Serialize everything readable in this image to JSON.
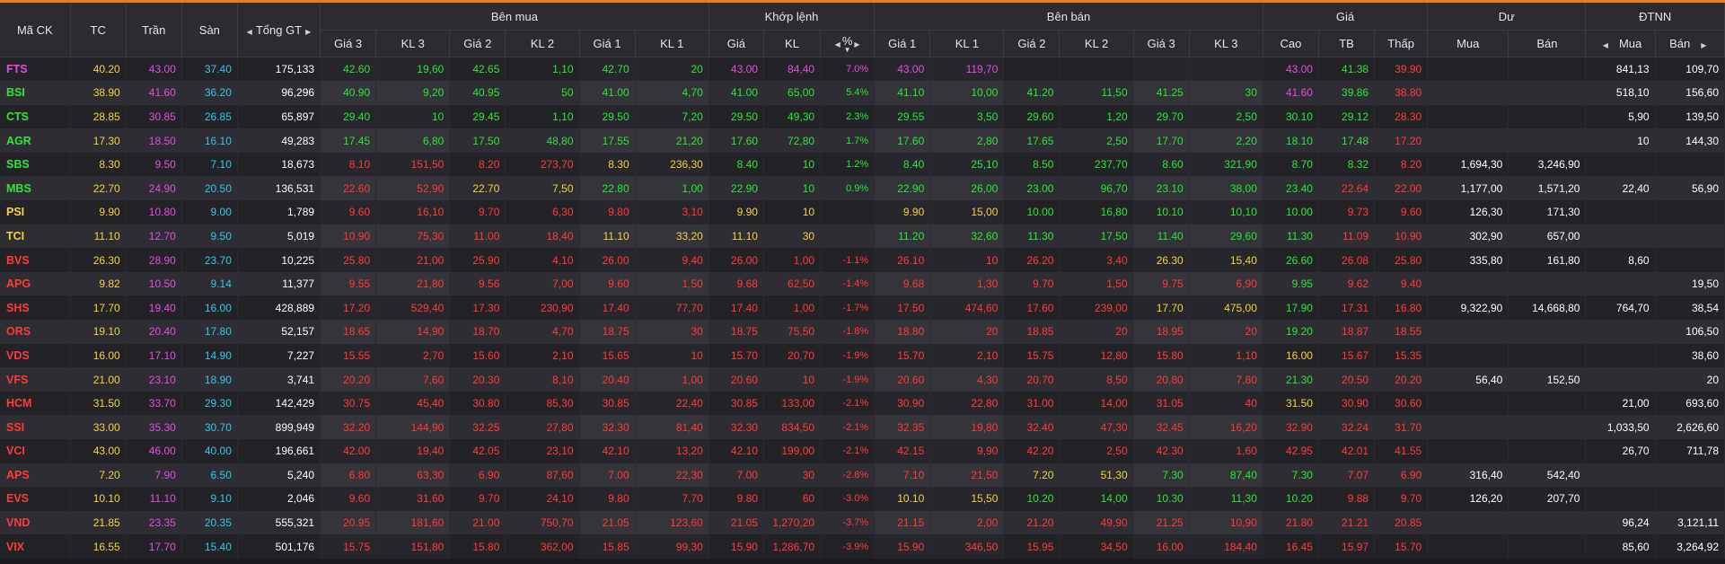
{
  "headers": {
    "symbol": "Mã CK",
    "ref": "TC",
    "ceiling": "Trần",
    "floor": "Sàn",
    "total_value": "Tổng GT",
    "buy_side": "Bên mua",
    "matched": "Khớp lệnh",
    "sell_side": "Bên bán",
    "price": "Giá",
    "remaining": "Dư",
    "foreign": "ĐTNN",
    "buy_p3": "Giá 3",
    "buy_v3": "KL 3",
    "buy_p2": "Giá 2",
    "buy_v2": "KL 2",
    "buy_p1": "Giá 1",
    "buy_v1": "KL 1",
    "match_price": "Giá",
    "match_vol": "KL",
    "match_pct": "%",
    "sell_p1": "Giá 1",
    "sell_v1": "KL 1",
    "sell_p2": "Giá 2",
    "sell_v2": "KL 2",
    "sell_p3": "Giá 3",
    "sell_v3": "KL 3",
    "high": "Cao",
    "avg": "TB",
    "low": "Thấp",
    "rem_buy": "Mua",
    "rem_sell": "Bán",
    "fr_buy": "Mua",
    "fr_sell": "Bán"
  },
  "colors": {
    "ref": "#f3d33f",
    "ceiling": "#e34fe0",
    "floor": "#33c8e6",
    "up": "#2ee53a",
    "down": "#ff3b3b",
    "accent": "#ee7b1f"
  },
  "rows": [
    {
      "c": "FTS",
      "sc": "ceil",
      "tc": "40.20",
      "tr": "43.00",
      "sn": "37.40",
      "gt": "175,133",
      "b3": "42.60",
      "b3c": "up",
      "bv3": "19,60",
      "b2": "42.65",
      "b2c": "up",
      "bv2": "1,10",
      "b1": "42.70",
      "b1c": "up",
      "bv1": "20",
      "mp": "43.00",
      "mc": "ceil",
      "mv": "84,40",
      "pct": "7.0%",
      "s1": "43.00",
      "s1c": "ceil",
      "sv1": "119,70",
      "s2": "",
      "s2c": "",
      "sv2": "",
      "s3": "",
      "s3c": "",
      "sv3": "",
      "hi": "43.00",
      "hic": "ceil",
      "av": "41.38",
      "avc": "up",
      "lo": "39.90",
      "loc": "down",
      "rb": "",
      "rs": "",
      "fb": "841,13",
      "fs": "109,70"
    },
    {
      "c": "BSI",
      "sc": "up",
      "tc": "38.90",
      "tr": "41.60",
      "sn": "36.20",
      "gt": "96,296",
      "b3": "40.90",
      "b3c": "up",
      "bv3": "9,20",
      "b2": "40.95",
      "b2c": "up",
      "bv2": "50",
      "b1": "41.00",
      "b1c": "up",
      "bv1": "4,70",
      "mp": "41.00",
      "mc": "up",
      "mv": "65,00",
      "pct": "5.4%",
      "s1": "41.10",
      "s1c": "up",
      "sv1": "10,00",
      "s2": "41.20",
      "s2c": "up",
      "sv2": "11,50",
      "s3": "41.25",
      "s3c": "up",
      "sv3": "30",
      "hi": "41.60",
      "hic": "ceil",
      "av": "39.86",
      "avc": "up",
      "lo": "38.80",
      "loc": "down",
      "rb": "",
      "rs": "",
      "fb": "518,10",
      "fs": "156,60"
    },
    {
      "c": "CTS",
      "sc": "up",
      "tc": "28.85",
      "tr": "30.85",
      "sn": "26.85",
      "gt": "65,897",
      "b3": "29.40",
      "b3c": "up",
      "bv3": "10",
      "b2": "29.45",
      "b2c": "up",
      "bv2": "1,10",
      "b1": "29.50",
      "b1c": "up",
      "bv1": "7,20",
      "mp": "29.50",
      "mc": "up",
      "mv": "49,30",
      "pct": "2.3%",
      "s1": "29.55",
      "s1c": "up",
      "sv1": "3,50",
      "s2": "29.60",
      "s2c": "up",
      "sv2": "1,20",
      "s3": "29.70",
      "s3c": "up",
      "sv3": "2,50",
      "hi": "30.10",
      "hic": "up",
      "av": "29.12",
      "avc": "up",
      "lo": "28.30",
      "loc": "down",
      "rb": "",
      "rs": "",
      "fb": "5,90",
      "fs": "139,50"
    },
    {
      "c": "AGR",
      "sc": "up",
      "tc": "17.30",
      "tr": "18.50",
      "sn": "16.10",
      "gt": "49,283",
      "b3": "17.45",
      "b3c": "up",
      "bv3": "6,80",
      "b2": "17.50",
      "b2c": "up",
      "bv2": "48,80",
      "b1": "17.55",
      "b1c": "up",
      "bv1": "21,20",
      "mp": "17.60",
      "mc": "up",
      "mv": "72,80",
      "pct": "1.7%",
      "s1": "17.60",
      "s1c": "up",
      "sv1": "2,80",
      "s2": "17.65",
      "s2c": "up",
      "sv2": "2,50",
      "s3": "17.70",
      "s3c": "up",
      "sv3": "2,20",
      "hi": "18.10",
      "hic": "up",
      "av": "17.48",
      "avc": "up",
      "lo": "17.20",
      "loc": "down",
      "rb": "",
      "rs": "",
      "fb": "10",
      "fs": "144,30"
    },
    {
      "c": "SBS",
      "sc": "up",
      "tc": "8.30",
      "tr": "9.50",
      "sn": "7.10",
      "gt": "18,673",
      "b3": "8.10",
      "b3c": "down",
      "bv3": "151,50",
      "b2": "8.20",
      "b2c": "down",
      "bv2": "273,70",
      "b1": "8.30",
      "b1c": "ref",
      "bv1": "236,30",
      "mp": "8.40",
      "mc": "up",
      "mv": "10",
      "pct": "1.2%",
      "s1": "8.40",
      "s1c": "up",
      "sv1": "25,10",
      "s2": "8.50",
      "s2c": "up",
      "sv2": "237,70",
      "s3": "8.60",
      "s3c": "up",
      "sv3": "321,90",
      "hi": "8.70",
      "hic": "up",
      "av": "8.32",
      "avc": "up",
      "lo": "8.20",
      "loc": "down",
      "rb": "1,694,30",
      "rs": "3,246,90",
      "fb": "",
      "fs": ""
    },
    {
      "c": "MBS",
      "sc": "up",
      "tc": "22.70",
      "tr": "24.90",
      "sn": "20.50",
      "gt": "136,531",
      "b3": "22.60",
      "b3c": "down",
      "bv3": "52,90",
      "b2": "22.70",
      "b2c": "ref",
      "bv2": "7,50",
      "b1": "22.80",
      "b1c": "up",
      "bv1": "1,00",
      "mp": "22.90",
      "mc": "up",
      "mv": "10",
      "pct": "0.9%",
      "s1": "22.90",
      "s1c": "up",
      "sv1": "26,00",
      "s2": "23.00",
      "s2c": "up",
      "sv2": "96,70",
      "s3": "23.10",
      "s3c": "up",
      "sv3": "38,00",
      "hi": "23.40",
      "hic": "up",
      "av": "22.64",
      "avc": "down",
      "lo": "22.00",
      "loc": "down",
      "rb": "1,177,00",
      "rs": "1,571,20",
      "fb": "22,40",
      "fs": "56,90"
    },
    {
      "c": "PSI",
      "sc": "ref",
      "tc": "9.90",
      "tr": "10.80",
      "sn": "9.00",
      "gt": "1,789",
      "b3": "9.60",
      "b3c": "down",
      "bv3": "16,10",
      "b2": "9.70",
      "b2c": "down",
      "bv2": "6,30",
      "b1": "9.80",
      "b1c": "down",
      "bv1": "3,10",
      "mp": "9.90",
      "mc": "ref",
      "mv": "10",
      "pct": "",
      "s1": "9.90",
      "s1c": "ref",
      "sv1": "15,00",
      "s2": "10.00",
      "s2c": "up",
      "sv2": "16,80",
      "s3": "10.10",
      "s3c": "up",
      "sv3": "10,10",
      "hi": "10.00",
      "hic": "up",
      "av": "9.73",
      "avc": "down",
      "lo": "9.60",
      "loc": "down",
      "rb": "126,30",
      "rs": "171,30",
      "fb": "",
      "fs": ""
    },
    {
      "c": "TCI",
      "sc": "ref",
      "tc": "11.10",
      "tr": "12.70",
      "sn": "9.50",
      "gt": "5,019",
      "b3": "10.90",
      "b3c": "down",
      "bv3": "75,30",
      "b2": "11.00",
      "b2c": "down",
      "bv2": "18,40",
      "b1": "11.10",
      "b1c": "ref",
      "bv1": "33,20",
      "mp": "11.10",
      "mc": "ref",
      "mv": "30",
      "pct": "",
      "s1": "11.20",
      "s1c": "up",
      "sv1": "32,60",
      "s2": "11.30",
      "s2c": "up",
      "sv2": "17,50",
      "s3": "11.40",
      "s3c": "up",
      "sv3": "29,60",
      "hi": "11.30",
      "hic": "up",
      "av": "11.09",
      "avc": "down",
      "lo": "10.90",
      "loc": "down",
      "rb": "302,90",
      "rs": "657,00",
      "fb": "",
      "fs": ""
    },
    {
      "c": "BVS",
      "sc": "down",
      "tc": "26.30",
      "tr": "28.90",
      "sn": "23.70",
      "gt": "10,225",
      "b3": "25.80",
      "b3c": "down",
      "bv3": "21,00",
      "b2": "25.90",
      "b2c": "down",
      "bv2": "4,10",
      "b1": "26.00",
      "b1c": "down",
      "bv1": "9,40",
      "mp": "26.00",
      "mc": "down",
      "mv": "1,00",
      "pct": "-1.1%",
      "s1": "26.10",
      "s1c": "down",
      "sv1": "10",
      "s2": "26.20",
      "s2c": "down",
      "sv2": "3,40",
      "s3": "26.30",
      "s3c": "ref",
      "sv3": "15,40",
      "hi": "26.60",
      "hic": "up",
      "av": "26.08",
      "avc": "down",
      "lo": "25.80",
      "loc": "down",
      "rb": "335,80",
      "rs": "161,80",
      "fb": "8,60",
      "fs": ""
    },
    {
      "c": "APG",
      "sc": "down",
      "tc": "9.82",
      "tr": "10.50",
      "sn": "9.14",
      "gt": "11,377",
      "b3": "9.55",
      "b3c": "down",
      "bv3": "21,80",
      "b2": "9.56",
      "b2c": "down",
      "bv2": "7,00",
      "b1": "9.60",
      "b1c": "down",
      "bv1": "1,50",
      "mp": "9.68",
      "mc": "down",
      "mv": "62,50",
      "pct": "-1.4%",
      "s1": "9.68",
      "s1c": "down",
      "sv1": "1,30",
      "s2": "9.70",
      "s2c": "down",
      "sv2": "1,50",
      "s3": "9.75",
      "s3c": "down",
      "sv3": "6,90",
      "hi": "9.95",
      "hic": "up",
      "av": "9.62",
      "avc": "down",
      "lo": "9.40",
      "loc": "down",
      "rb": "",
      "rs": "",
      "fb": "",
      "fs": "19,50"
    },
    {
      "c": "SHS",
      "sc": "down",
      "tc": "17.70",
      "tr": "19.40",
      "sn": "16.00",
      "gt": "428,889",
      "b3": "17.20",
      "b3c": "down",
      "bv3": "529,40",
      "b2": "17.30",
      "b2c": "down",
      "bv2": "230,90",
      "b1": "17.40",
      "b1c": "down",
      "bv1": "77,70",
      "mp": "17.40",
      "mc": "down",
      "mv": "1,00",
      "pct": "-1.7%",
      "s1": "17.50",
      "s1c": "down",
      "sv1": "474,60",
      "s2": "17.60",
      "s2c": "down",
      "sv2": "239,00",
      "s3": "17.70",
      "s3c": "ref",
      "sv3": "475,00",
      "hi": "17.90",
      "hic": "up",
      "av": "17.31",
      "avc": "down",
      "lo": "16.80",
      "loc": "down",
      "rb": "9,322,90",
      "rs": "14,668,80",
      "fb": "764,70",
      "fs": "38,54"
    },
    {
      "c": "ORS",
      "sc": "down",
      "tc": "19.10",
      "tr": "20.40",
      "sn": "17.80",
      "gt": "52,157",
      "b3": "18.65",
      "b3c": "down",
      "bv3": "14,90",
      "b2": "18.70",
      "b2c": "down",
      "bv2": "4,70",
      "b1": "18.75",
      "b1c": "down",
      "bv1": "30",
      "mp": "18.75",
      "mc": "down",
      "mv": "75,50",
      "pct": "-1.8%",
      "s1": "18.80",
      "s1c": "down",
      "sv1": "20",
      "s2": "18.85",
      "s2c": "down",
      "sv2": "20",
      "s3": "18.95",
      "s3c": "down",
      "sv3": "20",
      "hi": "19.20",
      "hic": "up",
      "av": "18.87",
      "avc": "down",
      "lo": "18.55",
      "loc": "down",
      "rb": "",
      "rs": "",
      "fb": "",
      "fs": "106,50"
    },
    {
      "c": "VDS",
      "sc": "down",
      "tc": "16.00",
      "tr": "17.10",
      "sn": "14.90",
      "gt": "7,227",
      "b3": "15.55",
      "b3c": "down",
      "bv3": "2,70",
      "b2": "15.60",
      "b2c": "down",
      "bv2": "2,10",
      "b1": "15.65",
      "b1c": "down",
      "bv1": "10",
      "mp": "15.70",
      "mc": "down",
      "mv": "20,70",
      "pct": "-1.9%",
      "s1": "15.70",
      "s1c": "down",
      "sv1": "2,10",
      "s2": "15.75",
      "s2c": "down",
      "sv2": "12,80",
      "s3": "15.80",
      "s3c": "down",
      "sv3": "1,10",
      "hi": "16.00",
      "hic": "ref",
      "av": "15.67",
      "avc": "down",
      "lo": "15.35",
      "loc": "down",
      "rb": "",
      "rs": "",
      "fb": "",
      "fs": "38,60"
    },
    {
      "c": "VFS",
      "sc": "down",
      "tc": "21.00",
      "tr": "23.10",
      "sn": "18.90",
      "gt": "3,741",
      "b3": "20.20",
      "b3c": "down",
      "bv3": "7,60",
      "b2": "20.30",
      "b2c": "down",
      "bv2": "8,10",
      "b1": "20.40",
      "b1c": "down",
      "bv1": "1,00",
      "mp": "20.60",
      "mc": "down",
      "mv": "10",
      "pct": "-1.9%",
      "s1": "20.60",
      "s1c": "down",
      "sv1": "4,30",
      "s2": "20.70",
      "s2c": "down",
      "sv2": "8,50",
      "s3": "20.80",
      "s3c": "down",
      "sv3": "7,80",
      "hi": "21.30",
      "hic": "up",
      "av": "20.50",
      "avc": "down",
      "lo": "20.20",
      "loc": "down",
      "rb": "56,40",
      "rs": "152,50",
      "fb": "",
      "fs": "20"
    },
    {
      "c": "HCM",
      "sc": "down",
      "tc": "31.50",
      "tr": "33.70",
      "sn": "29.30",
      "gt": "142,429",
      "b3": "30.75",
      "b3c": "down",
      "bv3": "45,40",
      "b2": "30.80",
      "b2c": "down",
      "bv2": "85,30",
      "b1": "30.85",
      "b1c": "down",
      "bv1": "22,40",
      "mp": "30.85",
      "mc": "down",
      "mv": "133,00",
      "pct": "-2.1%",
      "s1": "30.90",
      "s1c": "down",
      "sv1": "22,80",
      "s2": "31.00",
      "s2c": "down",
      "sv2": "14,00",
      "s3": "31.05",
      "s3c": "down",
      "sv3": "40",
      "hi": "31.50",
      "hic": "ref",
      "av": "30.90",
      "avc": "down",
      "lo": "30.60",
      "loc": "down",
      "rb": "",
      "rs": "",
      "fb": "21,00",
      "fs": "693,60"
    },
    {
      "c": "SSI",
      "sc": "down",
      "tc": "33.00",
      "tr": "35.30",
      "sn": "30.70",
      "gt": "899,949",
      "b3": "32.20",
      "b3c": "down",
      "bv3": "144,90",
      "b2": "32.25",
      "b2c": "down",
      "bv2": "27,80",
      "b1": "32.30",
      "b1c": "down",
      "bv1": "81,40",
      "mp": "32.30",
      "mc": "down",
      "mv": "834,50",
      "pct": "-2.1%",
      "s1": "32.35",
      "s1c": "down",
      "sv1": "19,80",
      "s2": "32.40",
      "s2c": "down",
      "sv2": "47,30",
      "s3": "32.45",
      "s3c": "down",
      "sv3": "16,20",
      "hi": "32.90",
      "hic": "down",
      "av": "32.24",
      "avc": "down",
      "lo": "31.70",
      "loc": "down",
      "rb": "",
      "rs": "",
      "fb": "1,033,50",
      "fs": "2,626,60"
    },
    {
      "c": "VCI",
      "sc": "down",
      "tc": "43.00",
      "tr": "46.00",
      "sn": "40.00",
      "gt": "196,661",
      "b3": "42.00",
      "b3c": "down",
      "bv3": "19,40",
      "b2": "42.05",
      "b2c": "down",
      "bv2": "23,10",
      "b1": "42.10",
      "b1c": "down",
      "bv1": "13,20",
      "mp": "42.10",
      "mc": "down",
      "mv": "199,00",
      "pct": "-2.1%",
      "s1": "42.15",
      "s1c": "down",
      "sv1": "9,90",
      "s2": "42.20",
      "s2c": "down",
      "sv2": "2,50",
      "s3": "42.30",
      "s3c": "down",
      "sv3": "1,60",
      "hi": "42.95",
      "hic": "down",
      "av": "42.01",
      "avc": "down",
      "lo": "41.55",
      "loc": "down",
      "rb": "",
      "rs": "",
      "fb": "26,70",
      "fs": "711,78"
    },
    {
      "c": "APS",
      "sc": "down",
      "tc": "7.20",
      "tr": "7.90",
      "sn": "6.50",
      "gt": "5,240",
      "b3": "6.80",
      "b3c": "down",
      "bv3": "63,30",
      "b2": "6.90",
      "b2c": "down",
      "bv2": "87,60",
      "b1": "7.00",
      "b1c": "down",
      "bv1": "22,30",
      "mp": "7.00",
      "mc": "down",
      "mv": "30",
      "pct": "-2.8%",
      "s1": "7.10",
      "s1c": "down",
      "sv1": "21,50",
      "s2": "7.20",
      "s2c": "ref",
      "sv2": "51,30",
      "s3": "7.30",
      "s3c": "up",
      "sv3": "87,40",
      "hi": "7.30",
      "hic": "up",
      "av": "7.07",
      "avc": "down",
      "lo": "6.90",
      "loc": "down",
      "rb": "316,40",
      "rs": "542,40",
      "fb": "",
      "fs": ""
    },
    {
      "c": "EVS",
      "sc": "down",
      "tc": "10.10",
      "tr": "11.10",
      "sn": "9.10",
      "gt": "2,046",
      "b3": "9.60",
      "b3c": "down",
      "bv3": "31,60",
      "b2": "9.70",
      "b2c": "down",
      "bv2": "24,10",
      "b1": "9.80",
      "b1c": "down",
      "bv1": "7,70",
      "mp": "9.80",
      "mc": "down",
      "mv": "60",
      "pct": "-3.0%",
      "s1": "10.10",
      "s1c": "ref",
      "sv1": "15,50",
      "s2": "10.20",
      "s2c": "up",
      "sv2": "14,00",
      "s3": "10.30",
      "s3c": "up",
      "sv3": "11,30",
      "hi": "10.20",
      "hic": "up",
      "av": "9.88",
      "avc": "down",
      "lo": "9.70",
      "loc": "down",
      "rb": "126,20",
      "rs": "207,70",
      "fb": "",
      "fs": ""
    },
    {
      "c": "VND",
      "sc": "down",
      "tc": "21.85",
      "tr": "23.35",
      "sn": "20.35",
      "gt": "555,321",
      "b3": "20.95",
      "b3c": "down",
      "bv3": "181,60",
      "b2": "21.00",
      "b2c": "down",
      "bv2": "750,70",
      "b1": "21.05",
      "b1c": "down",
      "bv1": "123,60",
      "mp": "21.05",
      "mc": "down",
      "mv": "1,270,20",
      "pct": "-3.7%",
      "s1": "21.15",
      "s1c": "down",
      "sv1": "2,00",
      "s2": "21.20",
      "s2c": "down",
      "sv2": "49,90",
      "s3": "21.25",
      "s3c": "down",
      "sv3": "10,90",
      "hi": "21.80",
      "hic": "down",
      "av": "21.21",
      "avc": "down",
      "lo": "20.85",
      "loc": "down",
      "rb": "",
      "rs": "",
      "fb": "96,24",
      "fs": "3,121,11"
    },
    {
      "c": "VIX",
      "sc": "down",
      "tc": "16.55",
      "tr": "17.70",
      "sn": "15.40",
      "gt": "501,176",
      "b3": "15.75",
      "b3c": "down",
      "bv3": "151,80",
      "b2": "15.80",
      "b2c": "down",
      "bv2": "362,00",
      "b1": "15.85",
      "b1c": "down",
      "bv1": "99,30",
      "mp": "15.90",
      "mc": "down",
      "mv": "1,286,70",
      "pct": "-3.9%",
      "s1": "15.90",
      "s1c": "down",
      "sv1": "346,50",
      "s2": "15.95",
      "s2c": "down",
      "sv2": "34,50",
      "s3": "16.00",
      "s3c": "down",
      "sv3": "184,40",
      "hi": "16.45",
      "hic": "down",
      "av": "15.97",
      "avc": "down",
      "lo": "15.70",
      "loc": "down",
      "rb": "",
      "rs": "",
      "fb": "85,60",
      "fs": "3,264,92"
    }
  ]
}
